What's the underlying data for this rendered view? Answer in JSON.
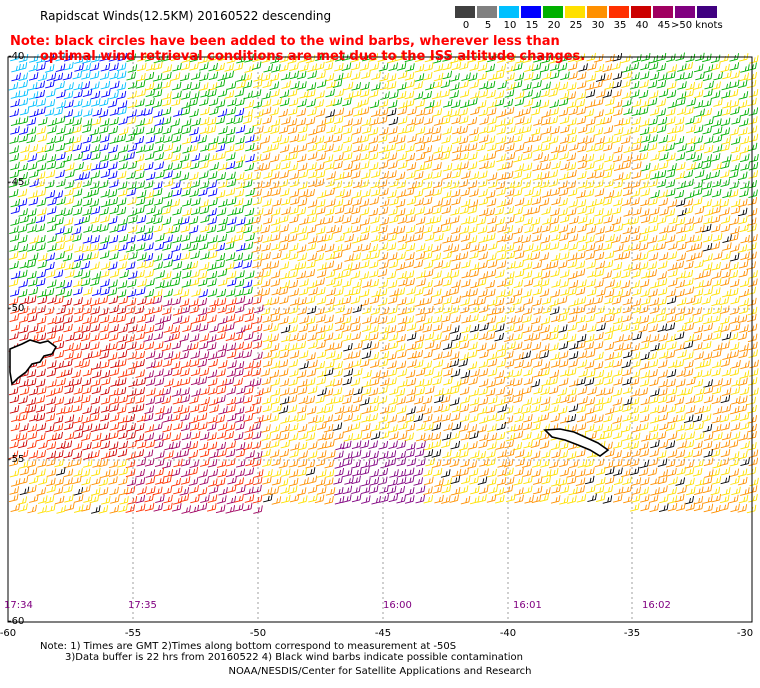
{
  "title": "Rapidscat Winds(12.5KM) 20160522 descending",
  "note": {
    "line1": "Note: black circles have been added to the wind barbs, wherever less than",
    "line2": "optimal wind retrieval conditions are met due to the ISS altitude changes."
  },
  "scale": {
    "labels": [
      "0",
      "5",
      "10",
      "15",
      "20",
      "25",
      "30",
      "35",
      "40",
      "45",
      ">50 knots"
    ],
    "colors": [
      "#404040",
      "#808080",
      "#00c0ff",
      "#0000ff",
      "#00b000",
      "#ffe000",
      "#ff9000",
      "#ff3000",
      "#cc0000",
      "#a00060",
      "#800080",
      "#400080"
    ]
  },
  "latitudes": [
    "-40",
    "-45",
    "-50",
    "-55",
    "-60"
  ],
  "longitudes": [
    "-60",
    "-55",
    "-50",
    "-45",
    "-40",
    "-35",
    "-30"
  ],
  "times": [
    "17:34",
    "17:35",
    "16:00",
    "16:01",
    "16:02"
  ],
  "footer": {
    "line1": "Note: 1) Times are GMT 2)Times along bottom correspond to measurement at -50S",
    "line2": "3)Data buffer is 22 hrs from 20160522 4) Black wind barbs indicate possible contamination"
  },
  "credit": "NOAA/NESDIS/Center for Satellite Applications and Research"
}
